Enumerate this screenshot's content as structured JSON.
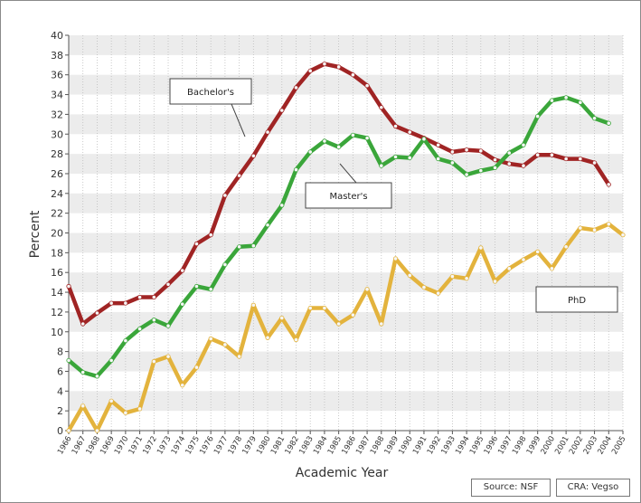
{
  "colors": {
    "bachelors": "#a02424",
    "masters": "#3aa63a",
    "phd": "#e3b33d",
    "band": "#ececec",
    "dot_fill": "#f6f6f6"
  },
  "footer": {
    "source": "Source: NSF",
    "credit": "CRA: Vegso"
  },
  "chart_data": {
    "type": "line",
    "title": "",
    "xlabel": "Academic Year",
    "ylabel": "Percent",
    "ylim": [
      0,
      40
    ],
    "yticks": [
      0,
      2,
      4,
      6,
      8,
      10,
      12,
      14,
      16,
      18,
      20,
      22,
      24,
      26,
      28,
      30,
      32,
      34,
      36,
      38,
      40
    ],
    "grid": true,
    "x": [
      "1966",
      "1967",
      "1968",
      "1969",
      "1970",
      "1971",
      "1972",
      "1973",
      "1974",
      "1975",
      "1976",
      "1977",
      "1978",
      "1979",
      "1980",
      "1981",
      "1982",
      "1983",
      "1984",
      "1985",
      "1986",
      "1987",
      "1988",
      "1989",
      "1990",
      "1991",
      "1992",
      "1993",
      "1994",
      "1995",
      "1996",
      "1997",
      "1998",
      "1999",
      "2000",
      "2001",
      "2002",
      "2003",
      "2004",
      "2005"
    ],
    "series": [
      {
        "name": "Bachelor's",
        "key": "bachelors",
        "values": [
          14.6,
          10.8,
          11.9,
          12.9,
          12.9,
          13.5,
          13.5,
          14.8,
          16.2,
          18.9,
          19.8,
          23.8,
          25.8,
          27.8,
          30.2,
          32.4,
          34.7,
          36.4,
          37.1,
          36.8,
          36,
          34.9,
          32.7,
          30.8,
          30.2,
          29.6,
          28.9,
          28.2,
          28.4,
          28.3,
          27.4,
          27,
          26.8,
          27.9,
          27.9,
          27.5,
          27.5,
          27.1,
          24.9,
          null
        ]
      },
      {
        "name": "Master's",
        "key": "masters",
        "values": [
          7.1,
          5.9,
          5.5,
          7.1,
          9.1,
          10.3,
          11.2,
          10.6,
          12.8,
          14.6,
          14.3,
          16.8,
          18.6,
          18.7,
          20.8,
          22.8,
          26.4,
          28.2,
          29.3,
          28.7,
          29.9,
          29.6,
          26.8,
          27.7,
          27.6,
          29.5,
          27.5,
          27.1,
          25.9,
          26.3,
          26.6,
          28.1,
          28.9,
          31.8,
          33.4,
          33.7,
          33.2,
          31.6,
          31.1,
          null
        ]
      },
      {
        "name": "PhD",
        "key": "phd",
        "values": [
          0,
          2.5,
          0,
          3,
          1.8,
          2.2,
          7,
          7.5,
          4.6,
          6.4,
          9.3,
          8.7,
          7.5,
          12.7,
          9.4,
          11.4,
          9.2,
          12.4,
          12.4,
          10.8,
          11.7,
          14.3,
          10.8,
          17.4,
          15.7,
          14.5,
          13.9,
          15.6,
          15.4,
          18.5,
          15.1,
          16.4,
          17.3,
          18.1,
          16.4,
          18.6,
          20.5,
          20.3,
          20.9,
          19.8
        ]
      }
    ],
    "annotations": [
      {
        "text": "Bachelor's",
        "series": "bachelors"
      },
      {
        "text": "Master's",
        "series": "masters"
      },
      {
        "text": "PhD",
        "series": "phd"
      }
    ]
  }
}
